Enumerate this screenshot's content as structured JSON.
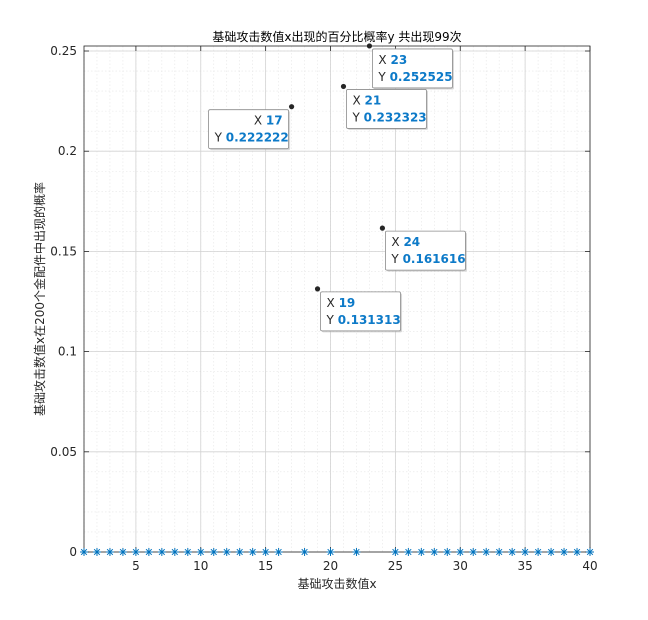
{
  "chart_data": {
    "type": "scatter",
    "title": "基础攻击数值x出现的百分比概率y    共出现99次",
    "xlabel": "基础攻击数值x",
    "ylabel": "基础攻击数值x在200个金配件中出现的概率",
    "xlim": [
      1,
      40
    ],
    "ylim": [
      0,
      0.2525
    ],
    "xticks": [
      5,
      10,
      15,
      20,
      25,
      30,
      35,
      40
    ],
    "yticks": [
      0,
      0.05,
      0.1,
      0.15,
      0.2,
      0.25
    ],
    "ytick_labels": [
      "0",
      "0.05",
      "0.1",
      "0.15",
      "0.2",
      "0.25"
    ],
    "grid": true,
    "minor_grid": true,
    "marker_color": "#0072bd",
    "points": [
      {
        "x": 1,
        "y": 0
      },
      {
        "x": 2,
        "y": 0
      },
      {
        "x": 3,
        "y": 0
      },
      {
        "x": 4,
        "y": 0
      },
      {
        "x": 5,
        "y": 0
      },
      {
        "x": 6,
        "y": 0
      },
      {
        "x": 7,
        "y": 0
      },
      {
        "x": 8,
        "y": 0
      },
      {
        "x": 9,
        "y": 0
      },
      {
        "x": 10,
        "y": 0
      },
      {
        "x": 11,
        "y": 0
      },
      {
        "x": 12,
        "y": 0
      },
      {
        "x": 13,
        "y": 0
      },
      {
        "x": 14,
        "y": 0
      },
      {
        "x": 15,
        "y": 0
      },
      {
        "x": 16,
        "y": 0
      },
      {
        "x": 17,
        "y": 0.222222
      },
      {
        "x": 18,
        "y": 0
      },
      {
        "x": 19,
        "y": 0.131313
      },
      {
        "x": 20,
        "y": 0
      },
      {
        "x": 21,
        "y": 0.232323
      },
      {
        "x": 22,
        "y": 0
      },
      {
        "x": 23,
        "y": 0.252525
      },
      {
        "x": 24,
        "y": 0.161616
      },
      {
        "x": 25,
        "y": 0
      },
      {
        "x": 26,
        "y": 0
      },
      {
        "x": 27,
        "y": 0
      },
      {
        "x": 28,
        "y": 0
      },
      {
        "x": 29,
        "y": 0
      },
      {
        "x": 30,
        "y": 0
      },
      {
        "x": 31,
        "y": 0
      },
      {
        "x": 32,
        "y": 0
      },
      {
        "x": 33,
        "y": 0
      },
      {
        "x": 34,
        "y": 0
      },
      {
        "x": 35,
        "y": 0
      },
      {
        "x": 36,
        "y": 0
      },
      {
        "x": 37,
        "y": 0
      },
      {
        "x": 38,
        "y": 0
      },
      {
        "x": 39,
        "y": 0
      },
      {
        "x": 40,
        "y": 0
      }
    ],
    "datatips": [
      {
        "x": 23,
        "y": 0.252525,
        "x_label": "23",
        "y_label": "0.252525",
        "side": "below-right"
      },
      {
        "x": 21,
        "y": 0.232323,
        "x_label": "21",
        "y_label": "0.232323",
        "side": "below-right"
      },
      {
        "x": 17,
        "y": 0.222222,
        "x_label": "17",
        "y_label": "0.222222",
        "side": "below-left"
      },
      {
        "x": 24,
        "y": 0.161616,
        "x_label": "24",
        "y_label": "0.161616",
        "side": "below-right"
      },
      {
        "x": 19,
        "y": 0.131313,
        "x_label": "19",
        "y_label": "0.131313",
        "side": "below-right"
      }
    ],
    "datatip_x_key": "X",
    "datatip_y_key": "Y"
  }
}
